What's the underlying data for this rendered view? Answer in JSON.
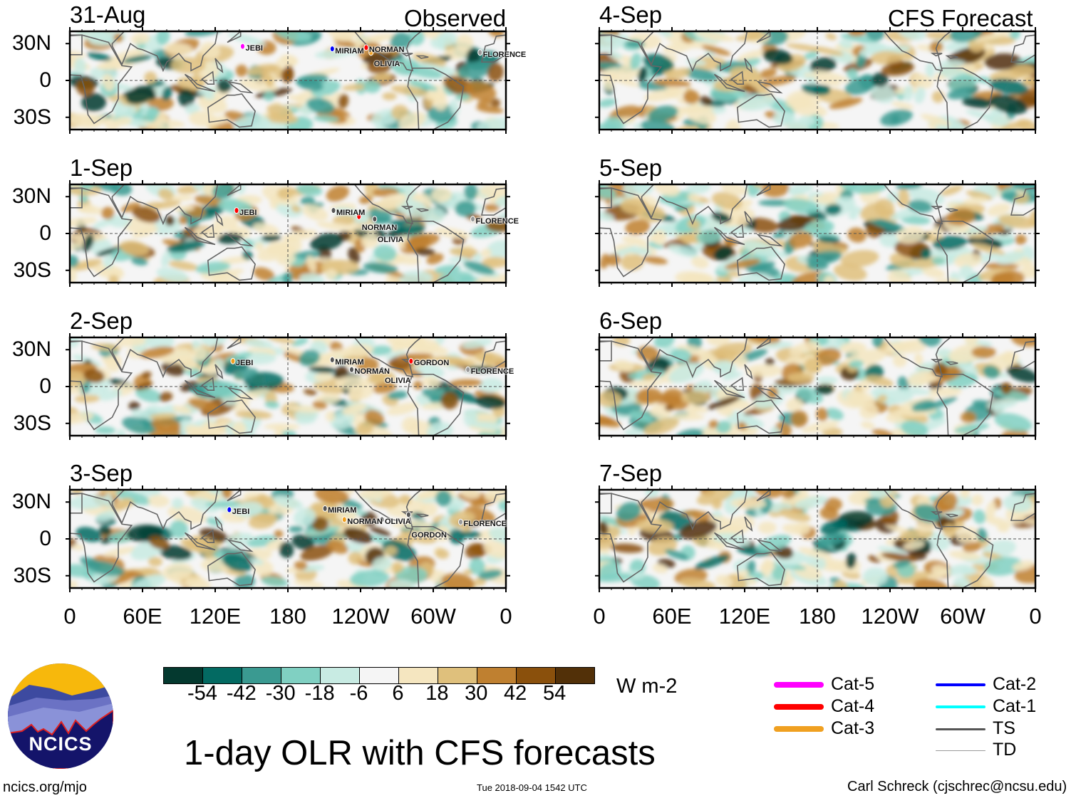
{
  "title": "1-day OLR with CFS forecasts",
  "observed_label": "Observed",
  "forecast_label": "CFS Forecast",
  "footer": {
    "url": "ncics.org/mjo",
    "timestamp": "Tue 2018-09-04 1542 UTC",
    "author": "Carl Schreck (cjschrec@ncsu.edu)"
  },
  "logo_text": "NCICS",
  "units": "W m-2",
  "chart_data": {
    "type": "heatmap",
    "title": "1-day OLR with CFS forecasts",
    "variable": "OLR anomaly",
    "lat_ticks": [
      "30N",
      "0",
      "30S"
    ],
    "lon_ticks": [
      "0",
      "60E",
      "120E",
      "180",
      "120W",
      "60W",
      "0"
    ],
    "colorbar": {
      "levels": [
        "-54",
        "-42",
        "-30",
        "-18",
        "-6",
        "6",
        "18",
        "30",
        "42",
        "54"
      ],
      "colors": [
        "#04392f",
        "#036a62",
        "#3a9a91",
        "#80d0c2",
        "#c8ebe3",
        "#f5f5f5",
        "#f5e6c0",
        "#dfc07c",
        "#bf8030",
        "#8a500c",
        "#523008"
      ]
    },
    "panels": [
      {
        "date": "31-Aug",
        "group": "observed",
        "storms": [
          {
            "name": "JEBI",
            "lon": 145,
            "lat": 26,
            "cat": "Cat-5"
          },
          {
            "name": "MIRIAM",
            "lon": 219,
            "lat": 24,
            "cat": "Cat-2"
          },
          {
            "name": "NORMAN",
            "lon": 247,
            "lat": 25,
            "cat": "Cat-4"
          },
          {
            "name": "OLIVIA",
            "lon": 251,
            "lat": 21,
            "cat": "Cat-3"
          },
          {
            "name": "FLORENCE",
            "lon": 341,
            "lat": 21,
            "cat": "TD"
          }
        ]
      },
      {
        "date": "1-Sep",
        "group": "observed",
        "storms": [
          {
            "name": "JEBI",
            "lon": 140,
            "lat": 17,
            "cat": "Cat-4"
          },
          {
            "name": "MIRIAM",
            "lon": 220,
            "lat": 17,
            "cat": "TS"
          },
          {
            "name": "NORMAN",
            "lon": 241,
            "lat": 12,
            "cat": "Cat-4"
          },
          {
            "name": "OLIVIA",
            "lon": 254,
            "lat": 10,
            "cat": "TS"
          },
          {
            "name": "FLORENCE",
            "lon": 335,
            "lat": 10,
            "cat": "TD"
          }
        ]
      },
      {
        "date": "2-Sep",
        "group": "observed",
        "storms": [
          {
            "name": "JEBI",
            "lon": 137,
            "lat": 19,
            "cat": "Cat-3"
          },
          {
            "name": "MIRIAM",
            "lon": 219,
            "lat": 20,
            "cat": "TS"
          },
          {
            "name": "NORMAN",
            "lon": 235,
            "lat": 12,
            "cat": "TS"
          },
          {
            "name": "OLIVIA",
            "lon": 260,
            "lat": 12,
            "cat": "TS"
          },
          {
            "name": "GORDON",
            "lon": 284,
            "lat": 19,
            "cat": "Cat-4"
          },
          {
            "name": "FLORENCE",
            "lon": 331,
            "lat": 12,
            "cat": "TD"
          }
        ]
      },
      {
        "date": "3-Sep",
        "group": "observed",
        "storms": [
          {
            "name": "JEBI",
            "lon": 134,
            "lat": 22,
            "cat": "Cat-2"
          },
          {
            "name": "MIRIAM",
            "lon": 213,
            "lat": 23,
            "cat": "TS"
          },
          {
            "name": "NORMAN",
            "lon": 229,
            "lat": 14,
            "cat": "Cat-3"
          },
          {
            "name": "OLIVIA",
            "lon": 260,
            "lat": 14,
            "cat": "TS"
          },
          {
            "name": "GORDON",
            "lon": 282,
            "lat": 18,
            "cat": "TS"
          },
          {
            "name": "FLORENCE",
            "lon": 325,
            "lat": 12,
            "cat": "TD"
          }
        ]
      },
      {
        "date": "4-Sep",
        "group": "forecast",
        "storms": []
      },
      {
        "date": "5-Sep",
        "group": "forecast",
        "storms": []
      },
      {
        "date": "6-Sep",
        "group": "forecast",
        "storms": []
      },
      {
        "date": "7-Sep",
        "group": "forecast",
        "storms": []
      }
    ],
    "legend": [
      {
        "label": "Cat-5",
        "color": "#ff00ff"
      },
      {
        "label": "Cat-4",
        "color": "#ff0000"
      },
      {
        "label": "Cat-3",
        "color": "#f0a020"
      },
      {
        "label": "Cat-2",
        "color": "#0000ff"
      },
      {
        "label": "Cat-1",
        "color": "#00ffff"
      },
      {
        "label": "TS",
        "color": "#555555"
      },
      {
        "label": "TD",
        "color": "#999999"
      }
    ]
  }
}
